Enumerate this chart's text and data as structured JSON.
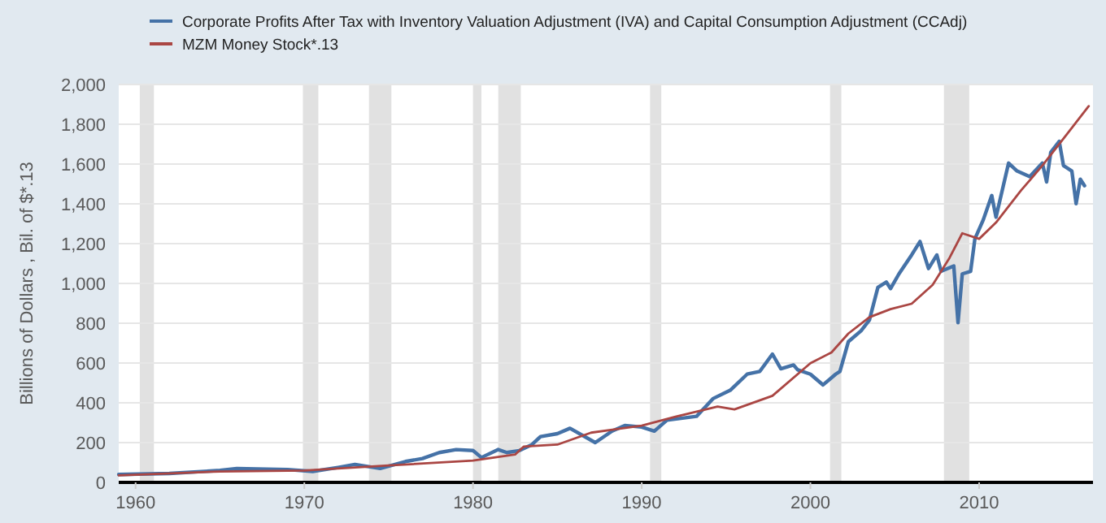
{
  "chart_data": {
    "type": "line",
    "ylabel": "Billions of Dollars , Bil. of $*.13",
    "xlim": [
      "1959-01",
      "2016-10"
    ],
    "xticks": [
      {
        "value": "1960",
        "label": "1960"
      },
      {
        "value": "1970",
        "label": "1970"
      },
      {
        "value": "1980",
        "label": "1980"
      },
      {
        "value": "1990",
        "label": "1990"
      },
      {
        "value": "2000",
        "label": "2000"
      },
      {
        "value": "2010",
        "label": "2010"
      }
    ],
    "ylim": [
      0,
      2000
    ],
    "yticks": [
      {
        "value": 0,
        "label": "0"
      },
      {
        "value": 200,
        "label": "200"
      },
      {
        "value": 400,
        "label": "400"
      },
      {
        "value": 600,
        "label": "600"
      },
      {
        "value": 800,
        "label": "800"
      },
      {
        "value": 1000,
        "label": "1,000"
      },
      {
        "value": 1200,
        "label": "1,200"
      },
      {
        "value": 1400,
        "label": "1,400"
      },
      {
        "value": 1600,
        "label": "1,600"
      },
      {
        "value": 1800,
        "label": "1,800"
      },
      {
        "value": 2000,
        "label": "2,000"
      }
    ],
    "grid": "y",
    "legend": "top left",
    "line_style": "solid",
    "marker": "none",
    "bands": [
      {
        "axis": "x",
        "from": "1960-04",
        "to": "1961-02",
        "color": "#e1e1e1"
      },
      {
        "axis": "x",
        "from": "1969-12",
        "to": "1970-11",
        "color": "#e1e1e1"
      },
      {
        "axis": "x",
        "from": "1973-11",
        "to": "1975-03",
        "color": "#e1e1e1"
      },
      {
        "axis": "x",
        "from": "1980-01",
        "to": "1980-07",
        "color": "#e1e1e1"
      },
      {
        "axis": "x",
        "from": "1981-07",
        "to": "1982-11",
        "color": "#e1e1e1"
      },
      {
        "axis": "x",
        "from": "1990-07",
        "to": "1991-03",
        "color": "#e1e1e1"
      },
      {
        "axis": "x",
        "from": "2001-03",
        "to": "2001-11",
        "color": "#e1e1e1"
      },
      {
        "axis": "x",
        "from": "2007-12",
        "to": "2009-06",
        "color": "#e1e1e1"
      }
    ],
    "series": [
      {
        "name": "Corporate Profits After Tax with Inventory Valuation Adjustment (IVA) and Capital Consumption Adjustment (CCAdj)",
        "color": "#4572a7",
        "x": [
          "1959-01",
          "1962-01",
          "1965-01",
          "1966-01",
          "1969-01",
          "1970-07",
          "1972-01",
          "1973-01",
          "1974-07",
          "1976-01",
          "1977-01",
          "1978-01",
          "1979-01",
          "1980-01",
          "1980-07",
          "1981-07",
          "1982-01",
          "1982-10",
          "1983-07",
          "1984-01",
          "1985-01",
          "1985-10",
          "1987-04",
          "1988-04",
          "1989-01",
          "1990-01",
          "1990-10",
          "1991-07",
          "1993-04",
          "1994-04",
          "1995-04",
          "1996-04",
          "1997-01",
          "1997-10",
          "1998-04",
          "1999-01",
          "1999-04",
          "2000-01",
          "2000-10",
          "2001-07",
          "2001-10",
          "2002-04",
          "2003-01",
          "2003-07",
          "2004-01",
          "2004-07",
          "2004-10",
          "2005-04",
          "2006-01",
          "2006-07",
          "2007-01",
          "2007-07",
          "2007-10",
          "2008-07",
          "2008-10",
          "2009-01",
          "2009-07",
          "2009-10",
          "2010-04",
          "2010-10",
          "2011-01",
          "2011-10",
          "2012-04",
          "2013-01",
          "2013-10",
          "2014-01",
          "2014-04",
          "2014-10",
          "2015-01",
          "2015-07",
          "2015-10",
          "2016-01",
          "2016-04"
        ],
        "values": [
          40,
          45,
          60,
          70,
          65,
          55,
          75,
          90,
          70,
          105,
          120,
          150,
          165,
          160,
          125,
          165,
          150,
          160,
          190,
          230,
          245,
          272,
          200,
          258,
          286,
          278,
          258,
          313,
          332,
          422,
          463,
          544,
          558,
          645,
          571,
          590,
          566,
          544,
          490,
          544,
          558,
          707,
          762,
          816,
          980,
          1007,
          974,
          1048,
          1143,
          1211,
          1075,
          1143,
          1061,
          1088,
          803,
          1048,
          1061,
          1224,
          1320,
          1442,
          1333,
          1605,
          1565,
          1537,
          1605,
          1510,
          1659,
          1714,
          1592,
          1565,
          1401,
          1524,
          1491
        ]
      },
      {
        "name": "MZM Money Stock*.13",
        "color": "#aa4643",
        "x": [
          "1959-01",
          "1965-01",
          "1970-01",
          "1975-01",
          "1980-01",
          "1982-07",
          "1983-01",
          "1985-01",
          "1987-01",
          "1990-01",
          "1992-01",
          "1994-07",
          "1995-07",
          "1997-10",
          "2000-01",
          "2001-04",
          "2002-04",
          "2003-07",
          "2004-10",
          "2006-01",
          "2007-04",
          "2008-04",
          "2009-01",
          "2010-01",
          "2011-01",
          "2012-07",
          "2013-10",
          "2015-04",
          "2016-07"
        ],
        "values": [
          35,
          55,
          60,
          85,
          110,
          140,
          180,
          190,
          250,
          285,
          330,
          381,
          367,
          435,
          599,
          653,
          748,
          830,
          871,
          898,
          993,
          1129,
          1252,
          1224,
          1306,
          1469,
          1592,
          1755,
          1891
        ]
      }
    ]
  }
}
